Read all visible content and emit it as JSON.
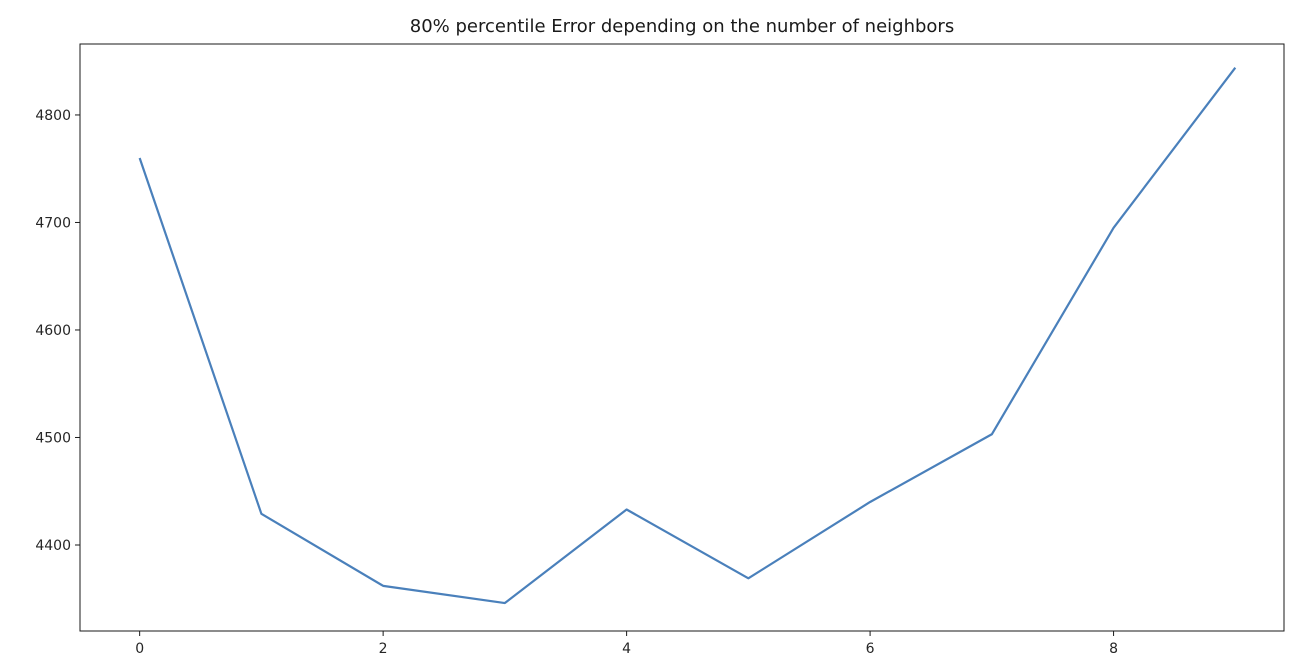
{
  "chart_data": {
    "type": "line",
    "title": "80% percentile Error depending on the number of neighbors",
    "xlabel": "",
    "ylabel": "",
    "x": [
      0,
      1,
      2,
      3,
      4,
      5,
      6,
      7,
      8,
      9
    ],
    "series": [
      {
        "values": [
          4760,
          4429,
          4362,
          4346,
          4433,
          4369,
          4440,
          4503,
          4695,
          4844
        ],
        "color": "#4a80bb"
      }
    ],
    "xlim": [
      -0.49,
      9.4
    ],
    "ylim": [
      4320,
      4866
    ],
    "xticks": [
      0,
      2,
      4,
      6,
      8
    ],
    "xtick_labels": [
      "0",
      "2",
      "4",
      "6",
      "8"
    ],
    "yticks": [
      4400,
      4500,
      4600,
      4700,
      4800
    ],
    "ytick_labels": [
      "4400",
      "4500",
      "4600",
      "4700",
      "4800"
    ],
    "grid": false,
    "legend": false
  }
}
